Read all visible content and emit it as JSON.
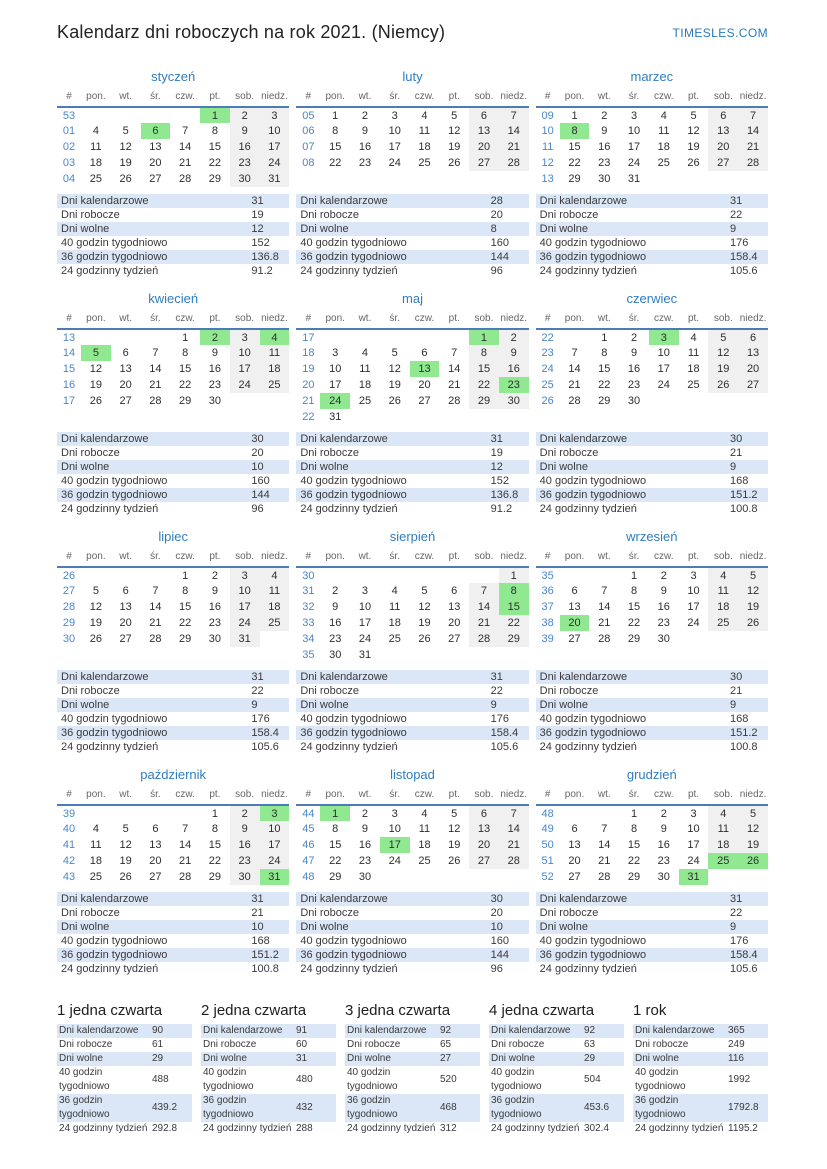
{
  "page": {
    "title": "Kalendarz dni roboczych na rok 2021. (Niemcy)",
    "site": "TIMESLES.COM"
  },
  "colors": {
    "accent_blue": "#2f7dc1",
    "week_number_blue": "#4a86c8",
    "header_line_blue": "#4d7bb5",
    "holiday_green": "#90e890",
    "weekend_gray": "#f0f0f0",
    "stats_stripe_blue": "#dbe6f6"
  },
  "calendar": {
    "day_headers": [
      "#",
      "pon.",
      "wt.",
      "śr.",
      "czw.",
      "pt.",
      "sob.",
      "niedz."
    ],
    "stat_labels": [
      "Dni kalendarzowe",
      "Dni robocze",
      "Dni wolne",
      "40 godzin tygodniowo",
      "36 godzin tygodniowo",
      "24 godzinny tydzień"
    ],
    "months": [
      {
        "name": "styczeń",
        "weeks": [
          {
            "num": "53",
            "days": [
              "",
              "",
              "",
              "",
              "1",
              "2",
              "3"
            ],
            "holidays": [
              4
            ]
          },
          {
            "num": "01",
            "days": [
              "4",
              "5",
              "6",
              "7",
              "8",
              "9",
              "10"
            ],
            "holidays": [
              2
            ]
          },
          {
            "num": "02",
            "days": [
              "11",
              "12",
              "13",
              "14",
              "15",
              "16",
              "17"
            ],
            "holidays": []
          },
          {
            "num": "03",
            "days": [
              "18",
              "19",
              "20",
              "21",
              "22",
              "23",
              "24"
            ],
            "holidays": []
          },
          {
            "num": "04",
            "days": [
              "25",
              "26",
              "27",
              "28",
              "29",
              "30",
              "31"
            ],
            "holidays": []
          }
        ],
        "stats": [
          "31",
          "19",
          "12",
          "152",
          "136.8",
          "91.2"
        ]
      },
      {
        "name": "luty",
        "weeks": [
          {
            "num": "05",
            "days": [
              "1",
              "2",
              "3",
              "4",
              "5",
              "6",
              "7"
            ],
            "holidays": []
          },
          {
            "num": "06",
            "days": [
              "8",
              "9",
              "10",
              "11",
              "12",
              "13",
              "14"
            ],
            "holidays": []
          },
          {
            "num": "07",
            "days": [
              "15",
              "16",
              "17",
              "18",
              "19",
              "20",
              "21"
            ],
            "holidays": []
          },
          {
            "num": "08",
            "days": [
              "22",
              "23",
              "24",
              "25",
              "26",
              "27",
              "28"
            ],
            "holidays": []
          }
        ],
        "stats": [
          "28",
          "20",
          "8",
          "160",
          "144",
          "96"
        ]
      },
      {
        "name": "marzec",
        "weeks": [
          {
            "num": "09",
            "days": [
              "1",
              "2",
              "3",
              "4",
              "5",
              "6",
              "7"
            ],
            "holidays": []
          },
          {
            "num": "10",
            "days": [
              "8",
              "9",
              "10",
              "11",
              "12",
              "13",
              "14"
            ],
            "holidays": [
              0
            ]
          },
          {
            "num": "11",
            "days": [
              "15",
              "16",
              "17",
              "18",
              "19",
              "20",
              "21"
            ],
            "holidays": []
          },
          {
            "num": "12",
            "days": [
              "22",
              "23",
              "24",
              "25",
              "26",
              "27",
              "28"
            ],
            "holidays": []
          },
          {
            "num": "13",
            "days": [
              "29",
              "30",
              "31",
              "",
              "",
              "",
              ""
            ],
            "holidays": []
          }
        ],
        "stats": [
          "31",
          "22",
          "9",
          "176",
          "158.4",
          "105.6"
        ]
      },
      {
        "name": "kwiecień",
        "weeks": [
          {
            "num": "13",
            "days": [
              "",
              "",
              "",
              "1",
              "2",
              "3",
              "4"
            ],
            "holidays": [
              4,
              6
            ]
          },
          {
            "num": "14",
            "days": [
              "5",
              "6",
              "7",
              "8",
              "9",
              "10",
              "11"
            ],
            "holidays": [
              0
            ]
          },
          {
            "num": "15",
            "days": [
              "12",
              "13",
              "14",
              "15",
              "16",
              "17",
              "18"
            ],
            "holidays": []
          },
          {
            "num": "16",
            "days": [
              "19",
              "20",
              "21",
              "22",
              "23",
              "24",
              "25"
            ],
            "holidays": []
          },
          {
            "num": "17",
            "days": [
              "26",
              "27",
              "28",
              "29",
              "30",
              "",
              ""
            ],
            "holidays": []
          }
        ],
        "stats": [
          "30",
          "20",
          "10",
          "160",
          "144",
          "96"
        ]
      },
      {
        "name": "maj",
        "weeks": [
          {
            "num": "17",
            "days": [
              "",
              "",
              "",
              "",
              "",
              "1",
              "2"
            ],
            "holidays": [
              5
            ]
          },
          {
            "num": "18",
            "days": [
              "3",
              "4",
              "5",
              "6",
              "7",
              "8",
              "9"
            ],
            "holidays": []
          },
          {
            "num": "19",
            "days": [
              "10",
              "11",
              "12",
              "13",
              "14",
              "15",
              "16"
            ],
            "holidays": [
              3
            ]
          },
          {
            "num": "20",
            "days": [
              "17",
              "18",
              "19",
              "20",
              "21",
              "22",
              "23"
            ],
            "holidays": [
              6
            ]
          },
          {
            "num": "21",
            "days": [
              "24",
              "25",
              "26",
              "27",
              "28",
              "29",
              "30"
            ],
            "holidays": [
              0
            ]
          },
          {
            "num": "22",
            "days": [
              "31",
              "",
              "",
              "",
              "",
              "",
              ""
            ],
            "holidays": []
          }
        ],
        "stats": [
          "31",
          "19",
          "12",
          "152",
          "136.8",
          "91.2"
        ]
      },
      {
        "name": "czerwiec",
        "weeks": [
          {
            "num": "22",
            "days": [
              "",
              "1",
              "2",
              "3",
              "4",
              "5",
              "6"
            ],
            "holidays": [
              3
            ]
          },
          {
            "num": "23",
            "days": [
              "7",
              "8",
              "9",
              "10",
              "11",
              "12",
              "13"
            ],
            "holidays": []
          },
          {
            "num": "24",
            "days": [
              "14",
              "15",
              "16",
              "17",
              "18",
              "19",
              "20"
            ],
            "holidays": []
          },
          {
            "num": "25",
            "days": [
              "21",
              "22",
              "23",
              "24",
              "25",
              "26",
              "27"
            ],
            "holidays": []
          },
          {
            "num": "26",
            "days": [
              "28",
              "29",
              "30",
              "",
              "",
              "",
              ""
            ],
            "holidays": []
          }
        ],
        "stats": [
          "30",
          "21",
          "9",
          "168",
          "151.2",
          "100.8"
        ]
      },
      {
        "name": "lipiec",
        "weeks": [
          {
            "num": "26",
            "days": [
              "",
              "",
              "",
              "1",
              "2",
              "3",
              "4"
            ],
            "holidays": []
          },
          {
            "num": "27",
            "days": [
              "5",
              "6",
              "7",
              "8",
              "9",
              "10",
              "11"
            ],
            "holidays": []
          },
          {
            "num": "28",
            "days": [
              "12",
              "13",
              "14",
              "15",
              "16",
              "17",
              "18"
            ],
            "holidays": []
          },
          {
            "num": "29",
            "days": [
              "19",
              "20",
              "21",
              "22",
              "23",
              "24",
              "25"
            ],
            "holidays": []
          },
          {
            "num": "30",
            "days": [
              "26",
              "27",
              "28",
              "29",
              "30",
              "31",
              ""
            ],
            "holidays": []
          }
        ],
        "stats": [
          "31",
          "22",
          "9",
          "176",
          "158.4",
          "105.6"
        ]
      },
      {
        "name": "sierpień",
        "weeks": [
          {
            "num": "30",
            "days": [
              "",
              "",
              "",
              "",
              "",
              "",
              "1"
            ],
            "holidays": []
          },
          {
            "num": "31",
            "days": [
              "2",
              "3",
              "4",
              "5",
              "6",
              "7",
              "8"
            ],
            "holidays": [
              6
            ]
          },
          {
            "num": "32",
            "days": [
              "9",
              "10",
              "11",
              "12",
              "13",
              "14",
              "15"
            ],
            "holidays": [
              6
            ]
          },
          {
            "num": "33",
            "days": [
              "16",
              "17",
              "18",
              "19",
              "20",
              "21",
              "22"
            ],
            "holidays": []
          },
          {
            "num": "34",
            "days": [
              "23",
              "24",
              "25",
              "26",
              "27",
              "28",
              "29"
            ],
            "holidays": []
          },
          {
            "num": "35",
            "days": [
              "30",
              "31",
              "",
              "",
              "",
              "",
              ""
            ],
            "holidays": []
          }
        ],
        "stats": [
          "31",
          "22",
          "9",
          "176",
          "158.4",
          "105.6"
        ]
      },
      {
        "name": "wrzesień",
        "weeks": [
          {
            "num": "35",
            "days": [
              "",
              "",
              "1",
              "2",
              "3",
              "4",
              "5"
            ],
            "holidays": []
          },
          {
            "num": "36",
            "days": [
              "6",
              "7",
              "8",
              "9",
              "10",
              "11",
              "12"
            ],
            "holidays": []
          },
          {
            "num": "37",
            "days": [
              "13",
              "14",
              "15",
              "16",
              "17",
              "18",
              "19"
            ],
            "holidays": []
          },
          {
            "num": "38",
            "days": [
              "20",
              "21",
              "22",
              "23",
              "24",
              "25",
              "26"
            ],
            "holidays": [
              0
            ]
          },
          {
            "num": "39",
            "days": [
              "27",
              "28",
              "29",
              "30",
              "",
              "",
              ""
            ],
            "holidays": []
          }
        ],
        "stats": [
          "30",
          "21",
          "9",
          "168",
          "151.2",
          "100.8"
        ]
      },
      {
        "name": "październik",
        "weeks": [
          {
            "num": "39",
            "days": [
              "",
              "",
              "",
              "",
              "1",
              "2",
              "3"
            ],
            "holidays": [
              6
            ]
          },
          {
            "num": "40",
            "days": [
              "4",
              "5",
              "6",
              "7",
              "8",
              "9",
              "10"
            ],
            "holidays": []
          },
          {
            "num": "41",
            "days": [
              "11",
              "12",
              "13",
              "14",
              "15",
              "16",
              "17"
            ],
            "holidays": []
          },
          {
            "num": "42",
            "days": [
              "18",
              "19",
              "20",
              "21",
              "22",
              "23",
              "24"
            ],
            "holidays": []
          },
          {
            "num": "43",
            "days": [
              "25",
              "26",
              "27",
              "28",
              "29",
              "30",
              "31"
            ],
            "holidays": [
              6
            ]
          }
        ],
        "stats": [
          "31",
          "21",
          "10",
          "168",
          "151.2",
          "100.8"
        ]
      },
      {
        "name": "listopad",
        "weeks": [
          {
            "num": "44",
            "days": [
              "1",
              "2",
              "3",
              "4",
              "5",
              "6",
              "7"
            ],
            "holidays": [
              0
            ]
          },
          {
            "num": "45",
            "days": [
              "8",
              "9",
              "10",
              "11",
              "12",
              "13",
              "14"
            ],
            "holidays": []
          },
          {
            "num": "46",
            "days": [
              "15",
              "16",
              "17",
              "18",
              "19",
              "20",
              "21"
            ],
            "holidays": [
              2
            ]
          },
          {
            "num": "47",
            "days": [
              "22",
              "23",
              "24",
              "25",
              "26",
              "27",
              "28"
            ],
            "holidays": []
          },
          {
            "num": "48",
            "days": [
              "29",
              "30",
              "",
              "",
              "",
              "",
              ""
            ],
            "holidays": []
          }
        ],
        "stats": [
          "30",
          "20",
          "10",
          "160",
          "144",
          "96"
        ]
      },
      {
        "name": "grudzień",
        "weeks": [
          {
            "num": "48",
            "days": [
              "",
              "",
              "1",
              "2",
              "3",
              "4",
              "5"
            ],
            "holidays": []
          },
          {
            "num": "49",
            "days": [
              "6",
              "7",
              "8",
              "9",
              "10",
              "11",
              "12"
            ],
            "holidays": []
          },
          {
            "num": "50",
            "days": [
              "13",
              "14",
              "15",
              "16",
              "17",
              "18",
              "19"
            ],
            "holidays": []
          },
          {
            "num": "51",
            "days": [
              "20",
              "21",
              "22",
              "23",
              "24",
              "25",
              "26"
            ],
            "holidays": [
              5,
              6
            ]
          },
          {
            "num": "52",
            "days": [
              "27",
              "28",
              "29",
              "30",
              "31",
              "",
              ""
            ],
            "holidays": [
              4
            ]
          }
        ],
        "stats": [
          "31",
          "22",
          "9",
          "176",
          "158.4",
          "105.6"
        ]
      }
    ],
    "summaries": [
      {
        "name": "1 jedna czwarta",
        "stats": [
          "90",
          "61",
          "29",
          "488",
          "439.2",
          "292.8"
        ]
      },
      {
        "name": "2 jedna czwarta",
        "stats": [
          "91",
          "60",
          "31",
          "480",
          "432",
          "288"
        ]
      },
      {
        "name": "3 jedna czwarta",
        "stats": [
          "92",
          "65",
          "27",
          "520",
          "468",
          "312"
        ]
      },
      {
        "name": "4 jedna czwarta",
        "stats": [
          "92",
          "63",
          "29",
          "504",
          "453.6",
          "302.4"
        ]
      },
      {
        "name": "1 rok",
        "stats": [
          "365",
          "249",
          "116",
          "1992",
          "1792.8",
          "1195.2"
        ]
      }
    ]
  }
}
